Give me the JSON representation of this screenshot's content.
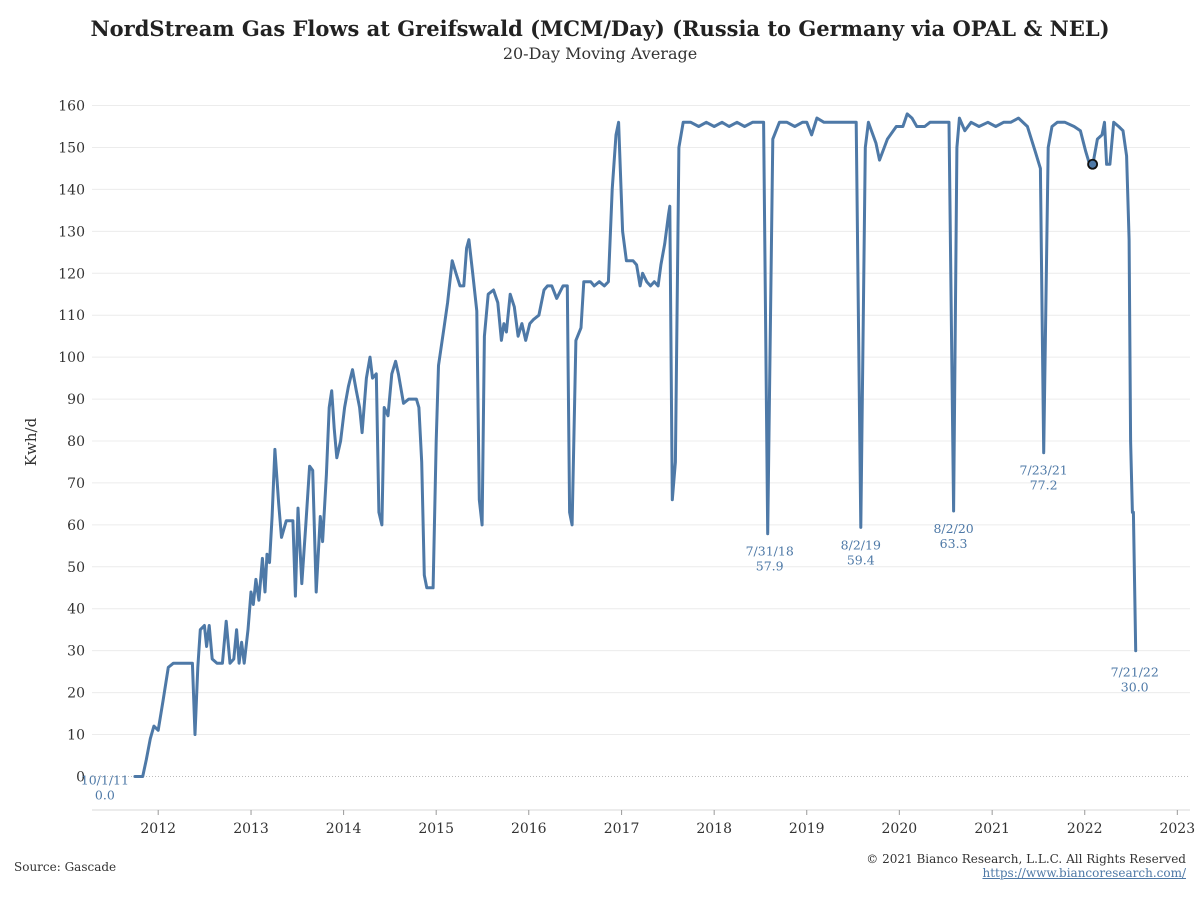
{
  "chart_data": {
    "type": "line",
    "title": "NordStream Gas Flows at Greifswald (MCM/Day) (Russia to Germany via OPAL & NEL)",
    "subtitle": "20-Day Moving Average",
    "ylabel": "Kwh/d",
    "xlabel": "",
    "ylim": [
      -8,
      168
    ],
    "xlim": [
      "2011-04-15",
      "2023-02-20"
    ],
    "yticks": [
      "0",
      "10",
      "20",
      "30",
      "40",
      "50",
      "60",
      "70",
      "80",
      "90",
      "100",
      "110",
      "120",
      "130",
      "140",
      "150",
      "160"
    ],
    "xticks": [
      {
        "label": "2012",
        "date": "2012-01-01"
      },
      {
        "label": "2013",
        "date": "2013-01-01"
      },
      {
        "label": "2014",
        "date": "2014-01-01"
      },
      {
        "label": "2015",
        "date": "2015-01-01"
      },
      {
        "label": "2016",
        "date": "2016-01-01"
      },
      {
        "label": "2017",
        "date": "2017-01-01"
      },
      {
        "label": "2018",
        "date": "2018-01-01"
      },
      {
        "label": "2019",
        "date": "2019-01-01"
      },
      {
        "label": "2020",
        "date": "2020-01-01"
      },
      {
        "label": "2021",
        "date": "2021-01-01"
      },
      {
        "label": "2022",
        "date": "2022-01-01"
      },
      {
        "label": "2023",
        "date": "2023-01-01"
      }
    ],
    "grid": true,
    "line_color": "#4e79a7",
    "series": [
      {
        "name": "",
        "points": [
          [
            "2011-10-01",
            0
          ],
          [
            "2011-11-01",
            0
          ],
          [
            "2011-11-15",
            4
          ],
          [
            "2011-12-01",
            9
          ],
          [
            "2011-12-15",
            12
          ],
          [
            "2012-01-01",
            11
          ],
          [
            "2012-01-20",
            18
          ],
          [
            "2012-02-10",
            26
          ],
          [
            "2012-03-01",
            27
          ],
          [
            "2012-04-01",
            27
          ],
          [
            "2012-05-01",
            27
          ],
          [
            "2012-05-15",
            27
          ],
          [
            "2012-05-25",
            10
          ],
          [
            "2012-06-05",
            26
          ],
          [
            "2012-06-15",
            35
          ],
          [
            "2012-07-01",
            36
          ],
          [
            "2012-07-10",
            31
          ],
          [
            "2012-07-20",
            36
          ],
          [
            "2012-08-01",
            28
          ],
          [
            "2012-08-20",
            27
          ],
          [
            "2012-09-10",
            27
          ],
          [
            "2012-09-25",
            37
          ],
          [
            "2012-10-10",
            27
          ],
          [
            "2012-10-25",
            28
          ],
          [
            "2012-11-05",
            35
          ],
          [
            "2012-11-15",
            27
          ],
          [
            "2012-11-25",
            32
          ],
          [
            "2012-12-05",
            27
          ],
          [
            "2012-12-20",
            35
          ],
          [
            "2013-01-01",
            44
          ],
          [
            "2013-01-10",
            41
          ],
          [
            "2013-01-20",
            47
          ],
          [
            "2013-02-01",
            42
          ],
          [
            "2013-02-15",
            52
          ],
          [
            "2013-02-25",
            44
          ],
          [
            "2013-03-05",
            53
          ],
          [
            "2013-03-15",
            51
          ],
          [
            "2013-03-25",
            62
          ],
          [
            "2013-04-05",
            78
          ],
          [
            "2013-04-20",
            65
          ],
          [
            "2013-05-01",
            57
          ],
          [
            "2013-05-20",
            61
          ],
          [
            "2013-06-15",
            61
          ],
          [
            "2013-06-25",
            43
          ],
          [
            "2013-07-05",
            64
          ],
          [
            "2013-07-20",
            46
          ],
          [
            "2013-08-05",
            60
          ],
          [
            "2013-08-20",
            74
          ],
          [
            "2013-09-01",
            73
          ],
          [
            "2013-09-15",
            44
          ],
          [
            "2013-10-01",
            62
          ],
          [
            "2013-10-10",
            56
          ],
          [
            "2013-10-25",
            72
          ],
          [
            "2013-11-05",
            88
          ],
          [
            "2013-11-15",
            92
          ],
          [
            "2013-11-25",
            83
          ],
          [
            "2013-12-05",
            76
          ],
          [
            "2013-12-20",
            80
          ],
          [
            "2014-01-05",
            88
          ],
          [
            "2014-01-20",
            93
          ],
          [
            "2014-02-05",
            97
          ],
          [
            "2014-02-20",
            92
          ],
          [
            "2014-03-05",
            88
          ],
          [
            "2014-03-15",
            82
          ],
          [
            "2014-04-01",
            95
          ],
          [
            "2014-04-15",
            100
          ],
          [
            "2014-04-25",
            95
          ],
          [
            "2014-05-10",
            96
          ],
          [
            "2014-05-20",
            63
          ],
          [
            "2014-06-01",
            60
          ],
          [
            "2014-06-10",
            88
          ],
          [
            "2014-06-25",
            86
          ],
          [
            "2014-07-10",
            96
          ],
          [
            "2014-07-25",
            99
          ],
          [
            "2014-08-05",
            96
          ],
          [
            "2014-08-25",
            89
          ],
          [
            "2014-09-15",
            90
          ],
          [
            "2014-10-01",
            90
          ],
          [
            "2014-10-15",
            90
          ],
          [
            "2014-10-25",
            88
          ],
          [
            "2014-11-05",
            75
          ],
          [
            "2014-11-15",
            48
          ],
          [
            "2014-11-25",
            45
          ],
          [
            "2014-12-20",
            45
          ],
          [
            "2015-01-01",
            80
          ],
          [
            "2015-01-10",
            98
          ],
          [
            "2015-02-01",
            107
          ],
          [
            "2015-02-15",
            113
          ],
          [
            "2015-03-05",
            123
          ],
          [
            "2015-03-20",
            120
          ],
          [
            "2015-04-05",
            117
          ],
          [
            "2015-04-20",
            117
          ],
          [
            "2015-05-01",
            126
          ],
          [
            "2015-05-10",
            128
          ],
          [
            "2015-05-25",
            120
          ],
          [
            "2015-06-10",
            111
          ],
          [
            "2015-06-20",
            66
          ],
          [
            "2015-07-01",
            60
          ],
          [
            "2015-07-10",
            105
          ],
          [
            "2015-07-25",
            115
          ],
          [
            "2015-08-15",
            116
          ],
          [
            "2015-09-01",
            113
          ],
          [
            "2015-09-15",
            104
          ],
          [
            "2015-09-25",
            108
          ],
          [
            "2015-10-05",
            106
          ],
          [
            "2015-10-20",
            115
          ],
          [
            "2015-11-05",
            112
          ],
          [
            "2015-11-20",
            105
          ],
          [
            "2015-12-05",
            108
          ],
          [
            "2015-12-20",
            104
          ],
          [
            "2016-01-05",
            108
          ],
          [
            "2016-01-20",
            109
          ],
          [
            "2016-02-10",
            110
          ],
          [
            "2016-03-01",
            116
          ],
          [
            "2016-03-15",
            117
          ],
          [
            "2016-04-01",
            117
          ],
          [
            "2016-04-20",
            114
          ],
          [
            "2016-05-15",
            117
          ],
          [
            "2016-06-01",
            117
          ],
          [
            "2016-06-10",
            63
          ],
          [
            "2016-06-20",
            60
          ],
          [
            "2016-07-05",
            104
          ],
          [
            "2016-07-25",
            107
          ],
          [
            "2016-08-05",
            118
          ],
          [
            "2016-09-01",
            118
          ],
          [
            "2016-09-15",
            117
          ],
          [
            "2016-10-05",
            118
          ],
          [
            "2016-10-25",
            117
          ],
          [
            "2016-11-10",
            118
          ],
          [
            "2016-11-25",
            140
          ],
          [
            "2016-12-10",
            153
          ],
          [
            "2016-12-20",
            156
          ],
          [
            "2017-01-05",
            130
          ],
          [
            "2017-01-20",
            123
          ],
          [
            "2017-02-15",
            123
          ],
          [
            "2017-03-01",
            122
          ],
          [
            "2017-03-15",
            117
          ],
          [
            "2017-03-25",
            120
          ],
          [
            "2017-04-10",
            118
          ],
          [
            "2017-04-25",
            117
          ],
          [
            "2017-05-10",
            118
          ],
          [
            "2017-05-25",
            117
          ],
          [
            "2017-06-05",
            122
          ],
          [
            "2017-06-20",
            127
          ],
          [
            "2017-07-05",
            134
          ],
          [
            "2017-07-10",
            136
          ],
          [
            "2017-07-20",
            66
          ],
          [
            "2017-08-01",
            75
          ],
          [
            "2017-08-15",
            150
          ],
          [
            "2017-09-01",
            156
          ],
          [
            "2017-10-01",
            156
          ],
          [
            "2017-11-01",
            155
          ],
          [
            "2017-12-01",
            156
          ],
          [
            "2018-01-01",
            155
          ],
          [
            "2018-02-01",
            156
          ],
          [
            "2018-03-01",
            155
          ],
          [
            "2018-04-01",
            156
          ],
          [
            "2018-05-01",
            155
          ],
          [
            "2018-06-01",
            156
          ],
          [
            "2018-07-15",
            156
          ],
          [
            "2018-07-31",
            57.9
          ],
          [
            "2018-08-20",
            152
          ],
          [
            "2018-09-15",
            156
          ],
          [
            "2018-10-15",
            156
          ],
          [
            "2018-11-15",
            155
          ],
          [
            "2018-12-15",
            156
          ],
          [
            "2019-01-01",
            156
          ],
          [
            "2019-01-20",
            153
          ],
          [
            "2019-02-10",
            157
          ],
          [
            "2019-03-10",
            156
          ],
          [
            "2019-04-10",
            156
          ],
          [
            "2019-05-10",
            156
          ],
          [
            "2019-06-10",
            156
          ],
          [
            "2019-07-15",
            156
          ],
          [
            "2019-08-02",
            59.4
          ],
          [
            "2019-08-20",
            150
          ],
          [
            "2019-09-01",
            156
          ],
          [
            "2019-10-01",
            151
          ],
          [
            "2019-10-15",
            147
          ],
          [
            "2019-11-15",
            152
          ],
          [
            "2019-12-20",
            155
          ],
          [
            "2020-01-15",
            155
          ],
          [
            "2020-02-01",
            158
          ],
          [
            "2020-02-20",
            157
          ],
          [
            "2020-03-10",
            155
          ],
          [
            "2020-04-10",
            155
          ],
          [
            "2020-05-01",
            156
          ],
          [
            "2020-06-01",
            156
          ],
          [
            "2020-07-15",
            156
          ],
          [
            "2020-08-02",
            63.3
          ],
          [
            "2020-08-15",
            150
          ],
          [
            "2020-08-25",
            157
          ],
          [
            "2020-09-15",
            154
          ],
          [
            "2020-10-10",
            156
          ],
          [
            "2020-11-10",
            155
          ],
          [
            "2020-12-15",
            156
          ],
          [
            "2021-01-15",
            155
          ],
          [
            "2021-02-15",
            156
          ],
          [
            "2021-03-15",
            156
          ],
          [
            "2021-04-15",
            157
          ],
          [
            "2021-05-20",
            155
          ],
          [
            "2021-06-20",
            149
          ],
          [
            "2021-07-10",
            145
          ],
          [
            "2021-07-23",
            77.2
          ],
          [
            "2021-08-10",
            150
          ],
          [
            "2021-08-25",
            155
          ],
          [
            "2021-09-15",
            156
          ],
          [
            "2021-10-15",
            156
          ],
          [
            "2021-11-20",
            155
          ],
          [
            "2021-12-15",
            154
          ],
          [
            "2022-01-05",
            149
          ],
          [
            "2022-01-20",
            146
          ],
          [
            "2022-02-05",
            147
          ],
          [
            "2022-02-20",
            152
          ],
          [
            "2022-03-10",
            153
          ],
          [
            "2022-03-20",
            156
          ],
          [
            "2022-03-28",
            146
          ],
          [
            "2022-04-10",
            146
          ],
          [
            "2022-04-25",
            156
          ],
          [
            "2022-05-15",
            155
          ],
          [
            "2022-06-01",
            154
          ],
          [
            "2022-06-15",
            148
          ],
          [
            "2022-06-25",
            128
          ],
          [
            "2022-07-01",
            80
          ],
          [
            "2022-07-08",
            63
          ],
          [
            "2022-07-12",
            63
          ],
          [
            "2022-07-21",
            30
          ]
        ]
      }
    ],
    "marker": {
      "date": "2022-02-01",
      "value": 146
    },
    "annotations": [
      {
        "date_label": "10/1/11",
        "value_label": "0.0",
        "date": "2011-10-01",
        "value": 0
      },
      {
        "date_label": "7/31/18",
        "value_label": "57.9",
        "date": "2018-07-31",
        "value": 57.9
      },
      {
        "date_label": "8/2/19",
        "value_label": "59.4",
        "date": "2019-08-02",
        "value": 59.4
      },
      {
        "date_label": "8/2/20",
        "value_label": "63.3",
        "date": "2020-08-02",
        "value": 63.3
      },
      {
        "date_label": "7/23/21",
        "value_label": "77.2",
        "date": "2021-07-23",
        "value": 77.2
      },
      {
        "date_label": "7/21/22",
        "value_label": "30.0",
        "date": "2022-07-21",
        "value": 30.0
      }
    ]
  },
  "footer": {
    "source": "Source: Gascade",
    "copyright": "© 2021 Bianco Research, L.L.C. All Rights Reserved",
    "link": "https://www.biancoresearch.com/"
  }
}
